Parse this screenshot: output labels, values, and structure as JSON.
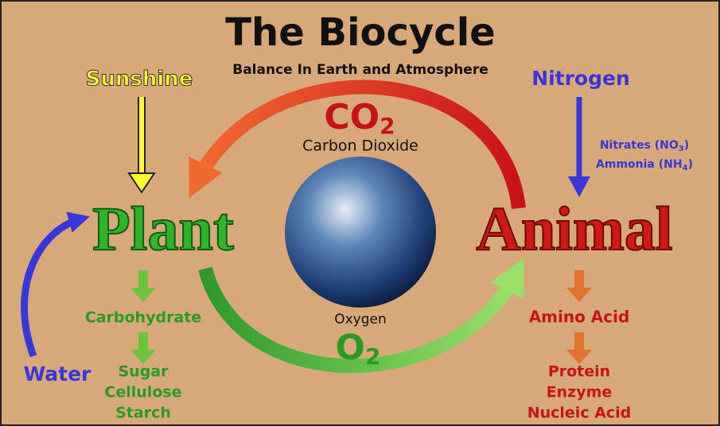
{
  "title": "The Biocycle",
  "subtitle": "Balance In Earth and Atmosphere",
  "sunshine": "Sunshine",
  "nitrogen": "Nitrogen",
  "nitrates": {
    "text": "Nitrates (NO",
    "sub": "3",
    "end": ")"
  },
  "ammonia": {
    "text": "Ammonia (NH",
    "sub": "4",
    "end": ")"
  },
  "co2": {
    "text": "CO",
    "sub": "2"
  },
  "carbon_dioxide": "Carbon Dioxide",
  "plant": "Plant",
  "animal": "Animal",
  "oxygen": "Oxygen",
  "o2": {
    "text": "O",
    "sub": "2"
  },
  "water": "Water",
  "plant_products": {
    "carbohydrate": "Carbohydrate",
    "sugars": [
      "Sugar",
      "Cellulose",
      "Starch"
    ]
  },
  "animal_products": {
    "amino_acid": "Amino Acid",
    "proteins": [
      "Protein",
      "Enzyme",
      "Nucleic Acid"
    ]
  }
}
